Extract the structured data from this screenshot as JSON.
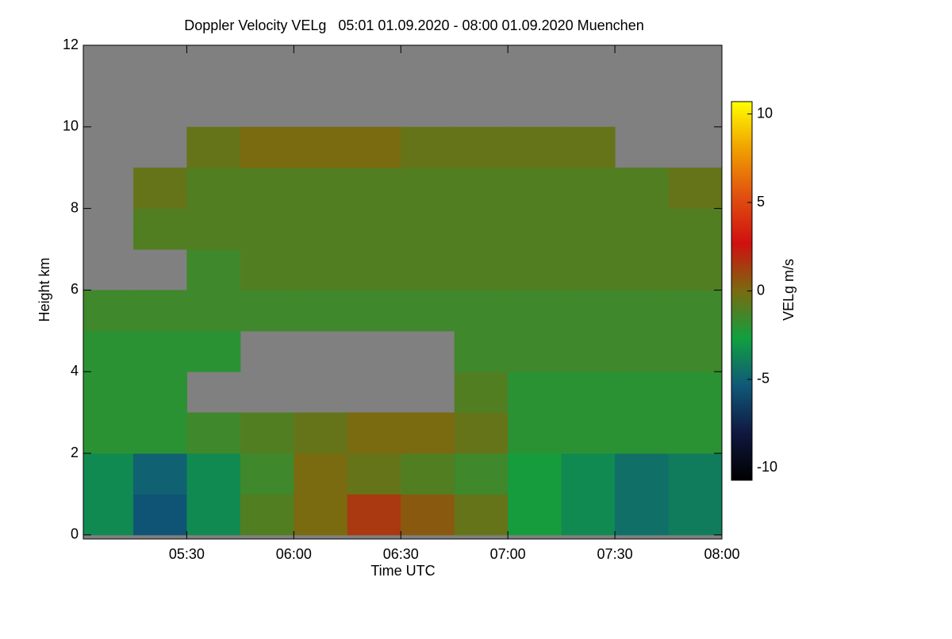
{
  "chart_data": {
    "type": "heatmap",
    "title": "Doppler Velocity VELg   05:01 01.09.2020 - 08:00 01.09.2020 Muenchen",
    "x_label": "Time UTC",
    "y_label": "Height km",
    "colorbar_label": "VELg m/s",
    "x": [
      301,
      315,
      330,
      345,
      360,
      375,
      390,
      405,
      420,
      435,
      450,
      465,
      480
    ],
    "y": [
      0,
      1,
      2,
      3,
      4,
      5,
      6,
      7,
      8,
      9,
      10,
      11,
      12
    ],
    "values": [
      [
        -3.5,
        -5.5,
        -3.5,
        -1,
        0,
        1.5,
        0.5,
        -0.5,
        -2.5,
        -3.5,
        -4.5,
        -4
      ],
      [
        -3.5,
        -5,
        -3.5,
        -1.5,
        0,
        -0.5,
        -1,
        -1.5,
        -2.5,
        -3.5,
        -4.5,
        -4
      ],
      [
        -2,
        -2,
        -1.5,
        -1,
        -0.5,
        0,
        0,
        -0.5,
        -2,
        -2,
        -2,
        -2
      ],
      [
        -2,
        -2,
        null,
        null,
        null,
        null,
        null,
        -1,
        -2,
        -2,
        -2,
        -2
      ],
      [
        -2,
        -2,
        -2,
        null,
        null,
        null,
        null,
        -1.5,
        -1.5,
        -1.5,
        -1.5,
        -1.5
      ],
      [
        -1.5,
        -1.5,
        -1.5,
        -1.5,
        -1.5,
        -1.5,
        -1.5,
        -1.5,
        -1.5,
        -1.5,
        -1.5,
        -1.5
      ],
      [
        null,
        null,
        -1.5,
        -1,
        -1,
        -1,
        -1,
        -1,
        -1,
        -1,
        -1,
        -1
      ],
      [
        null,
        -1,
        -1,
        -1,
        -1,
        -1,
        -1,
        -1,
        -1,
        -1,
        -1,
        -1
      ],
      [
        null,
        -0.5,
        -1,
        -1,
        -1,
        -1,
        -1,
        -1,
        -1,
        -1,
        -1,
        -0.5
      ],
      [
        null,
        null,
        -0.5,
        0,
        0,
        0,
        -0.5,
        -0.5,
        -0.5,
        -0.5,
        null,
        null
      ],
      [
        null,
        null,
        null,
        null,
        null,
        null,
        null,
        null,
        null,
        null,
        null,
        null
      ],
      [
        null,
        null,
        null,
        null,
        null,
        null,
        null,
        null,
        null,
        null,
        null,
        null
      ]
    ],
    "missing_color": "#808080",
    "colormap": [
      "#000000",
      "#101840",
      "#105878",
      "#10a040",
      "#7a6a10",
      "#d01010",
      "#e05010",
      "#f0a000",
      "#ffff00"
    ],
    "xlim": [
      301,
      480
    ],
    "xticks": [
      {
        "value": 330,
        "label": "05:30"
      },
      {
        "value": 360,
        "label": "06:00"
      },
      {
        "value": 390,
        "label": "06:30"
      },
      {
        "value": 420,
        "label": "07:00"
      },
      {
        "value": 450,
        "label": "07:30"
      },
      {
        "value": 480,
        "label": "08:00"
      }
    ],
    "ylim": [
      -0.1,
      12
    ],
    "yticks": [
      0,
      2,
      4,
      6,
      8,
      10,
      12
    ],
    "clim": [
      -10.7,
      10.7
    ],
    "cticks": [
      -10,
      -5,
      0,
      5,
      10
    ]
  }
}
